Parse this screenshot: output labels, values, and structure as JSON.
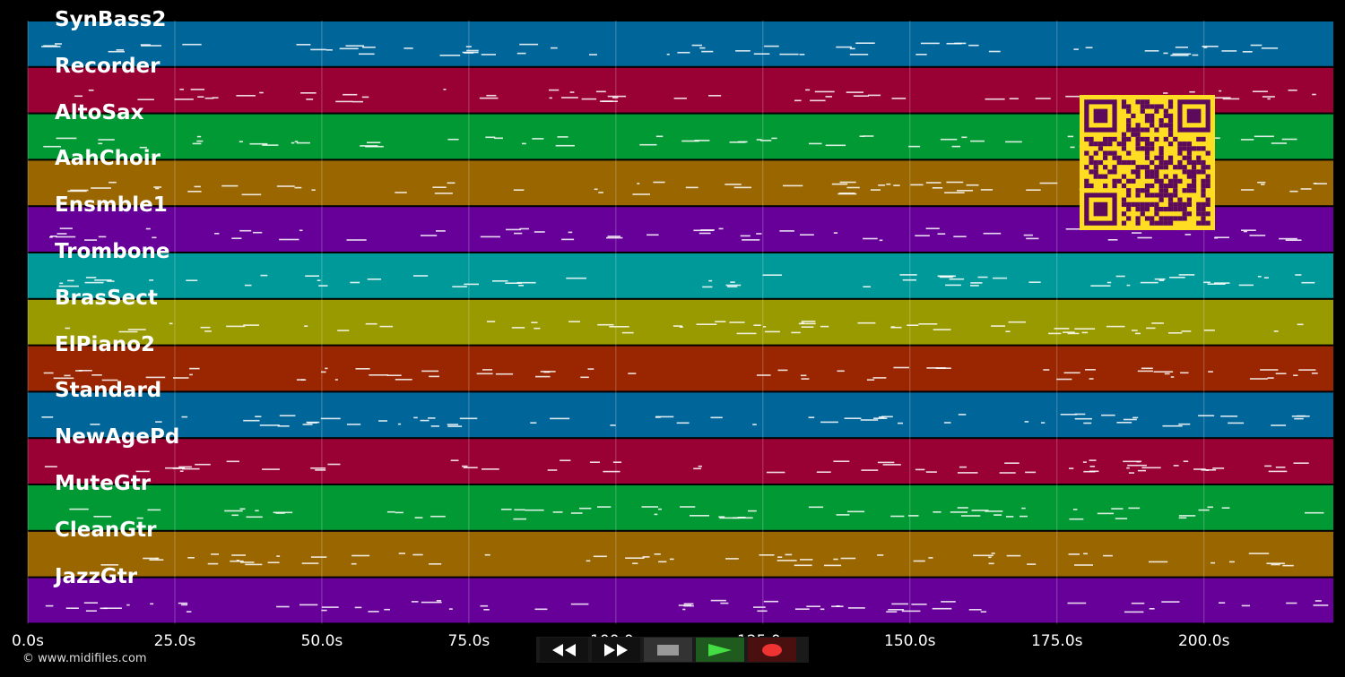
{
  "tracks": [
    {
      "name": "SynBass2",
      "color": "#006699"
    },
    {
      "name": "Recorder",
      "color": "#990033"
    },
    {
      "name": "AltoSax",
      "color": "#009933"
    },
    {
      "name": "AahChoir",
      "color": "#996600"
    },
    {
      "name": "Ensmble1",
      "color": "#660099"
    },
    {
      "name": "Trombone",
      "color": "#009999"
    },
    {
      "name": "BrasSect",
      "color": "#999900"
    },
    {
      "name": "ElPiano2",
      "color": "#992600"
    },
    {
      "name": "Standard",
      "color": "#006699"
    },
    {
      "name": "NewAgePd",
      "color": "#990033"
    },
    {
      "name": "MuteGtr",
      "color": "#009933"
    },
    {
      "name": "CleanGtr",
      "color": "#996600"
    },
    {
      "name": "JazzGtr",
      "color": "#660099"
    }
  ],
  "time_axis": {
    "ticks": [
      {
        "t": 0,
        "label": "0.0s"
      },
      {
        "t": 25,
        "label": "25.0s"
      },
      {
        "t": 50,
        "label": "50.0s"
      },
      {
        "t": 75,
        "label": "75.0s"
      },
      {
        "t": 100,
        "label": "100.0s"
      },
      {
        "t": 125,
        "label": "125.0s"
      },
      {
        "t": 150,
        "label": "150.0s"
      },
      {
        "t": 175,
        "label": "175.0s"
      },
      {
        "t": 200,
        "label": "200.0s"
      }
    ],
    "max": 222
  },
  "copyright": "© www.midifiles.com",
  "transport": {
    "rewind_icon": "rewind-icon",
    "fastforward_icon": "fast-forward-icon",
    "stop_icon": "stop-icon",
    "play_icon": "play-icon",
    "record_icon": "record-icon"
  },
  "qr": {
    "fg": "#5c0a5c",
    "bg": "#ffdd22"
  }
}
